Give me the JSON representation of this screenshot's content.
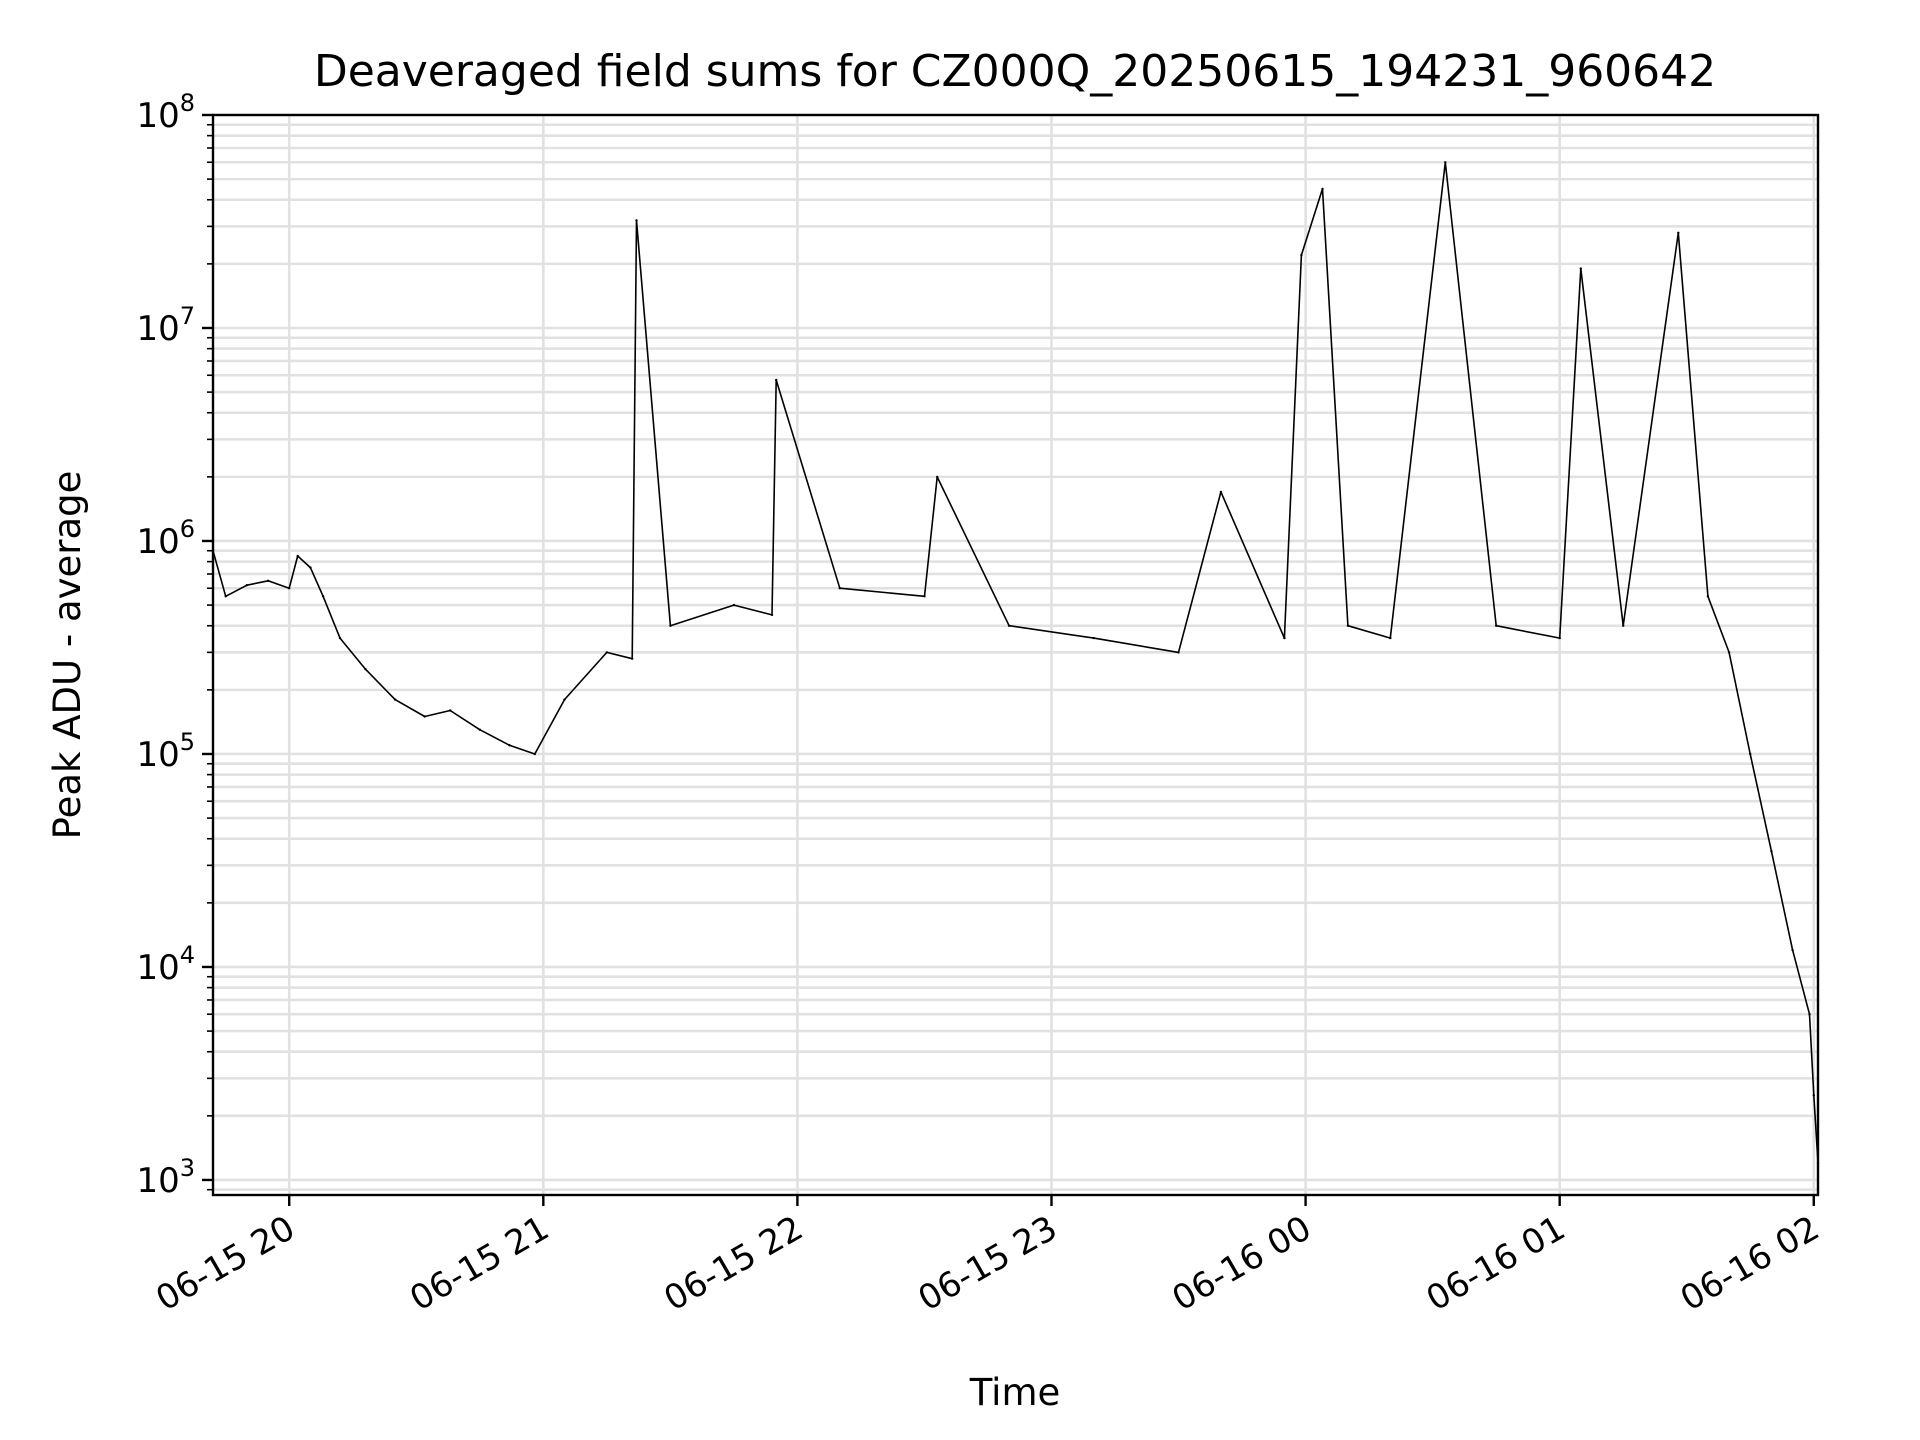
{
  "chart_data": {
    "type": "line",
    "title": "Deaveraged field sums for CZ000Q_20250615_194231_960642",
    "xlabel": "Time",
    "ylabel": "Peak ADU - average",
    "yscale": "log",
    "ylim": [
      850,
      100000000
    ],
    "y_ticks": [
      {
        "base": "10",
        "exp": "3",
        "value": 1000
      },
      {
        "base": "10",
        "exp": "4",
        "value": 10000
      },
      {
        "base": "10",
        "exp": "5",
        "value": 100000
      },
      {
        "base": "10",
        "exp": "6",
        "value": 1000000
      },
      {
        "base": "10",
        "exp": "7",
        "value": 10000000
      },
      {
        "base": "10",
        "exp": "8",
        "value": 100000000
      }
    ],
    "xlim": [
      "2025-06-15 19:42",
      "2025-06-16 02:01"
    ],
    "x_ticks": [
      {
        "label": "06-15 20",
        "time": "2025-06-15 20:00"
      },
      {
        "label": "06-15 21",
        "time": "2025-06-15 21:00"
      },
      {
        "label": "06-15 22",
        "time": "2025-06-15 22:00"
      },
      {
        "label": "06-15 23",
        "time": "2025-06-15 23:00"
      },
      {
        "label": "06-16 00",
        "time": "2025-06-16 00:00"
      },
      {
        "label": "06-16 01",
        "time": "2025-06-16 01:00"
      },
      {
        "label": "06-16 02",
        "time": "2025-06-16 02:00"
      }
    ],
    "grid": true,
    "line_color": "#000000",
    "grid_color": "#e1e1e1",
    "series": [
      {
        "values": [
          [
            "2025-06-15 19:42",
            900000
          ],
          [
            "2025-06-15 19:45",
            550000
          ],
          [
            "2025-06-15 19:50",
            620000
          ],
          [
            "2025-06-15 19:55",
            650000
          ],
          [
            "2025-06-15 20:00",
            600000
          ],
          [
            "2025-06-15 20:02",
            850000
          ],
          [
            "2025-06-15 20:05",
            750000
          ],
          [
            "2025-06-15 20:08",
            550000
          ],
          [
            "2025-06-15 20:12",
            350000
          ],
          [
            "2025-06-15 20:18",
            250000
          ],
          [
            "2025-06-15 20:25",
            180000
          ],
          [
            "2025-06-15 20:32",
            150000
          ],
          [
            "2025-06-15 20:38",
            160000
          ],
          [
            "2025-06-15 20:45",
            130000
          ],
          [
            "2025-06-15 20:52",
            110000
          ],
          [
            "2025-06-15 20:58",
            100000
          ],
          [
            "2025-06-15 21:05",
            180000
          ],
          [
            "2025-06-15 21:15",
            300000
          ],
          [
            "2025-06-15 21:21",
            280000
          ],
          [
            "2025-06-15 21:22",
            32000000
          ],
          [
            "2025-06-15 21:30",
            400000
          ],
          [
            "2025-06-15 21:45",
            500000
          ],
          [
            "2025-06-15 21:54",
            450000
          ],
          [
            "2025-06-15 21:55",
            5700000
          ],
          [
            "2025-06-15 22:10",
            600000
          ],
          [
            "2025-06-15 22:30",
            550000
          ],
          [
            "2025-06-15 22:33",
            2000000
          ],
          [
            "2025-06-15 22:50",
            400000
          ],
          [
            "2025-06-15 23:10",
            350000
          ],
          [
            "2025-06-15 23:30",
            300000
          ],
          [
            "2025-06-15 23:40",
            1700000
          ],
          [
            "2025-06-15 23:55",
            350000
          ],
          [
            "2025-06-15 23:59",
            22000000
          ],
          [
            "2025-06-16 00:04",
            45000000
          ],
          [
            "2025-06-16 00:10",
            400000
          ],
          [
            "2025-06-16 00:20",
            350000
          ],
          [
            "2025-06-16 00:33",
            60000000
          ],
          [
            "2025-06-16 00:45",
            400000
          ],
          [
            "2025-06-16 01:00",
            350000
          ],
          [
            "2025-06-16 01:05",
            19000000
          ],
          [
            "2025-06-16 01:15",
            400000
          ],
          [
            "2025-06-16 01:28",
            28000000
          ],
          [
            "2025-06-16 01:35",
            550000
          ],
          [
            "2025-06-16 01:40",
            300000
          ],
          [
            "2025-06-16 01:45",
            100000
          ],
          [
            "2025-06-16 01:50",
            35000
          ],
          [
            "2025-06-16 01:55",
            12000
          ],
          [
            "2025-06-16 01:59",
            6000
          ],
          [
            "2025-06-16 02:00",
            2500
          ],
          [
            "2025-06-16 02:01",
            1200
          ]
        ]
      }
    ]
  }
}
